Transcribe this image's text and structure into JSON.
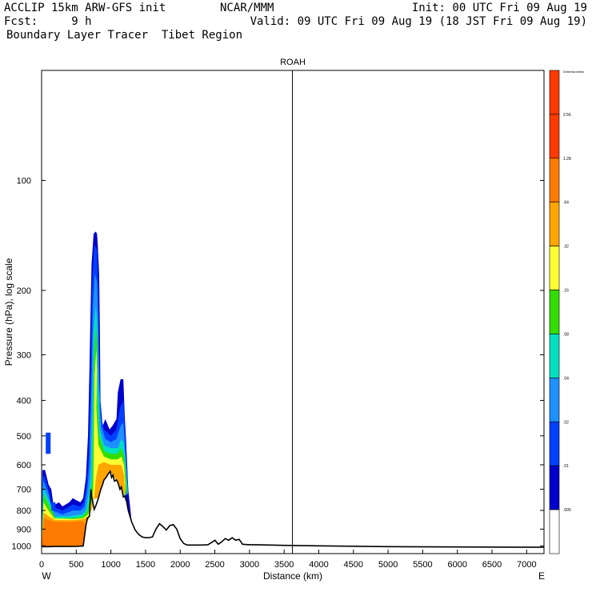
{
  "header": {
    "line1_left": "ACCLIP 15km ARW-GFS init",
    "line1_mid": "NCAR/MMM",
    "line1_right": "Init: 00 UTC Fri 09 Aug 19",
    "line2_left": "Fcst:     9 h",
    "line2_right": "Valid: 09 UTC Fri 09 Aug 19 (18 JST Fri 09 Aug 19)",
    "line3_left": "Boundary Layer Tracer  Tibet Region"
  },
  "chart_data": {
    "type": "cross-section",
    "title": "ROAH",
    "xlabel": "Distance (km)",
    "ylabel": "Pressure (hPa), log scale",
    "x_end_left": "W",
    "x_end_right": "E",
    "xlim": [
      0,
      7250
    ],
    "ylim": [
      1050,
      50
    ],
    "x_ticks": [
      0,
      500,
      1000,
      1500,
      2000,
      2500,
      3000,
      3500,
      4000,
      4500,
      5000,
      5500,
      6000,
      6500,
      7000
    ],
    "y_ticks": [
      100,
      200,
      300,
      400,
      500,
      600,
      700,
      800,
      900,
      1000
    ],
    "vertical_marker_km": 3620,
    "colorbar": {
      "top_label": "Dimensionless",
      "levels": [
        "2.56",
        "1.28",
        ".64",
        ".32",
        ".16",
        ".08",
        ".04",
        ".02",
        ".01",
        ".005"
      ],
      "colors": [
        "#ff3a00",
        "#ff7a00",
        "#ffa500",
        "#ffff33",
        "#33dd00",
        "#00e0c0",
        "#1e90ff",
        "#0040ff",
        "#0000cc",
        "#ffffff"
      ]
    },
    "terrain_profile": [
      [
        0,
        1005
      ],
      [
        100,
        1005
      ],
      [
        200,
        1004
      ],
      [
        300,
        1004
      ],
      [
        400,
        1004
      ],
      [
        500,
        1003
      ],
      [
        600,
        1001
      ],
      [
        640,
        880
      ],
      [
        660,
        840
      ],
      [
        690,
        830
      ],
      [
        710,
        700
      ],
      [
        730,
        745
      ],
      [
        760,
        795
      ],
      [
        790,
        770
      ],
      [
        820,
        740
      ],
      [
        850,
        705
      ],
      [
        880,
        680
      ],
      [
        900,
        660
      ],
      [
        930,
        650
      ],
      [
        960,
        636
      ],
      [
        990,
        625
      ],
      [
        1010,
        650
      ],
      [
        1030,
        640
      ],
      [
        1050,
        665
      ],
      [
        1080,
        660
      ],
      [
        1100,
        670
      ],
      [
        1130,
        700
      ],
      [
        1150,
        690
      ],
      [
        1180,
        735
      ],
      [
        1200,
        730
      ],
      [
        1230,
        760
      ],
      [
        1250,
        800
      ],
      [
        1300,
        860
      ],
      [
        1350,
        905
      ],
      [
        1400,
        930
      ],
      [
        1450,
        945
      ],
      [
        1500,
        950
      ],
      [
        1550,
        950
      ],
      [
        1600,
        945
      ],
      [
        1650,
        900
      ],
      [
        1700,
        870
      ],
      [
        1750,
        885
      ],
      [
        1800,
        905
      ],
      [
        1850,
        880
      ],
      [
        1900,
        875
      ],
      [
        1950,
        900
      ],
      [
        2000,
        955
      ],
      [
        2050,
        985
      ],
      [
        2100,
        995
      ],
      [
        2200,
        995
      ],
      [
        2300,
        995
      ],
      [
        2400,
        993
      ],
      [
        2450,
        980
      ],
      [
        2500,
        965
      ],
      [
        2550,
        990
      ],
      [
        2600,
        975
      ],
      [
        2650,
        955
      ],
      [
        2700,
        965
      ],
      [
        2750,
        950
      ],
      [
        2800,
        965
      ],
      [
        2850,
        960
      ],
      [
        2900,
        990
      ],
      [
        3000,
        993
      ],
      [
        3100,
        993
      ],
      [
        3500,
        997
      ],
      [
        4000,
        1000
      ],
      [
        5000,
        1005
      ],
      [
        6000,
        1007
      ],
      [
        7250,
        1009
      ]
    ],
    "tracer_shading": [
      {
        "level": ".01",
        "color": "#0000cc",
        "outline": [
          [
            0,
            1005
          ],
          [
            10,
            620
          ],
          [
            50,
            620
          ],
          [
            100,
            680
          ],
          [
            140,
            700
          ],
          [
            170,
            770
          ],
          [
            200,
            770
          ],
          [
            250,
            760
          ],
          [
            300,
            780
          ],
          [
            350,
            770
          ],
          [
            400,
            760
          ],
          [
            450,
            740
          ],
          [
            500,
            750
          ],
          [
            560,
            760
          ],
          [
            600,
            740
          ],
          [
            640,
            650
          ],
          [
            670,
            500
          ],
          [
            690,
            330
          ],
          [
            720,
            170
          ],
          [
            750,
            140
          ],
          [
            780,
            138
          ],
          [
            800,
            140
          ],
          [
            810,
            150
          ],
          [
            830,
            180
          ],
          [
            840,
            250
          ],
          [
            850,
            400
          ],
          [
            880,
            470
          ],
          [
            920,
            450
          ],
          [
            980,
            480
          ],
          [
            1020,
            470
          ],
          [
            1080,
            450
          ],
          [
            1100,
            380
          ],
          [
            1140,
            350
          ],
          [
            1180,
            350
          ],
          [
            1200,
            440
          ],
          [
            1220,
            520
          ],
          [
            1250,
            700
          ],
          [
            1300,
            860
          ],
          [
            1200,
            730
          ],
          [
            1100,
            670
          ],
          [
            990,
            625
          ],
          [
            900,
            660
          ],
          [
            820,
            740
          ],
          [
            730,
            745
          ],
          [
            690,
            830
          ],
          [
            640,
            880
          ],
          [
            600,
            1001
          ]
        ]
      },
      {
        "level": ".02",
        "color": "#0040ff",
        "outline": [
          [
            0,
            1005
          ],
          [
            15,
            640
          ],
          [
            50,
            650
          ],
          [
            100,
            700
          ],
          [
            150,
            780
          ],
          [
            300,
            800
          ],
          [
            450,
            770
          ],
          [
            560,
            780
          ],
          [
            610,
            760
          ],
          [
            650,
            680
          ],
          [
            680,
            560
          ],
          [
            705,
            360
          ],
          [
            730,
            190
          ],
          [
            760,
            150
          ],
          [
            800,
            155
          ],
          [
            820,
            200
          ],
          [
            830,
            300
          ],
          [
            850,
            440
          ],
          [
            900,
            480
          ],
          [
            1000,
            500
          ],
          [
            1080,
            480
          ],
          [
            1130,
            420
          ],
          [
            1180,
            400
          ],
          [
            1200,
            470
          ],
          [
            1230,
            600
          ],
          [
            1250,
            700
          ],
          [
            1200,
            730
          ],
          [
            1100,
            670
          ],
          [
            990,
            625
          ],
          [
            900,
            660
          ],
          [
            820,
            740
          ],
          [
            730,
            745
          ],
          [
            690,
            830
          ],
          [
            640,
            880
          ],
          [
            600,
            1001
          ]
        ]
      },
      {
        "level": ".04",
        "color": "#1e90ff",
        "outline": [
          [
            0,
            1005
          ],
          [
            20,
            660
          ],
          [
            50,
            680
          ],
          [
            100,
            720
          ],
          [
            150,
            800
          ],
          [
            300,
            820
          ],
          [
            450,
            800
          ],
          [
            560,
            800
          ],
          [
            620,
            780
          ],
          [
            660,
            700
          ],
          [
            690,
            600
          ],
          [
            715,
            400
          ],
          [
            740,
            220
          ],
          [
            770,
            180
          ],
          [
            800,
            190
          ],
          [
            820,
            260
          ],
          [
            830,
            350
          ],
          [
            860,
            470
          ],
          [
            920,
            510
          ],
          [
            1000,
            520
          ],
          [
            1080,
            510
          ],
          [
            1140,
            470
          ],
          [
            1180,
            460
          ],
          [
            1200,
            520
          ],
          [
            1230,
            650
          ],
          [
            1250,
            720
          ],
          [
            1200,
            730
          ],
          [
            1100,
            670
          ],
          [
            990,
            625
          ],
          [
            900,
            660
          ],
          [
            820,
            740
          ],
          [
            730,
            745
          ],
          [
            690,
            830
          ],
          [
            640,
            880
          ],
          [
            600,
            1001
          ]
        ]
      },
      {
        "level": ".08",
        "color": "#00e0c0",
        "outline": [
          [
            0,
            1005
          ],
          [
            25,
            690
          ],
          [
            60,
            720
          ],
          [
            120,
            760
          ],
          [
            180,
            830
          ],
          [
            400,
            830
          ],
          [
            580,
            820
          ],
          [
            640,
            800
          ],
          [
            680,
            720
          ],
          [
            710,
            640
          ],
          [
            730,
            430
          ],
          [
            750,
            260
          ],
          [
            780,
            220
          ],
          [
            800,
            240
          ],
          [
            810,
            320
          ],
          [
            840,
            480
          ],
          [
            900,
            530
          ],
          [
            1000,
            540
          ],
          [
            1100,
            540
          ],
          [
            1150,
            510
          ],
          [
            1180,
            520
          ],
          [
            1210,
            580
          ],
          [
            1240,
            700
          ],
          [
            1200,
            730
          ],
          [
            1100,
            670
          ],
          [
            990,
            625
          ],
          [
            900,
            660
          ],
          [
            820,
            740
          ],
          [
            730,
            745
          ],
          [
            690,
            830
          ],
          [
            640,
            880
          ],
          [
            600,
            1001
          ]
        ]
      },
      {
        "level": ".16",
        "color": "#33dd00",
        "outline": [
          [
            0,
            1005
          ],
          [
            30,
            720
          ],
          [
            70,
            750
          ],
          [
            150,
            800
          ],
          [
            200,
            840
          ],
          [
            450,
            840
          ],
          [
            600,
            830
          ],
          [
            660,
            800
          ],
          [
            700,
            740
          ],
          [
            730,
            670
          ],
          [
            745,
            460
          ],
          [
            760,
            300
          ],
          [
            785,
            250
          ],
          [
            800,
            280
          ],
          [
            800,
            380
          ],
          [
            830,
            500
          ],
          [
            900,
            550
          ],
          [
            1000,
            560
          ],
          [
            1100,
            560
          ],
          [
            1150,
            540
          ],
          [
            1190,
            570
          ],
          [
            1220,
            650
          ],
          [
            1230,
            710
          ],
          [
            1200,
            730
          ],
          [
            1100,
            670
          ],
          [
            990,
            625
          ],
          [
            900,
            660
          ],
          [
            820,
            740
          ],
          [
            730,
            745
          ],
          [
            690,
            830
          ],
          [
            640,
            880
          ],
          [
            600,
            1001
          ]
        ]
      },
      {
        "level": ".32",
        "color": "#ffff33",
        "outline": [
          [
            0,
            1005
          ],
          [
            30,
            760
          ],
          [
            80,
            790
          ],
          [
            180,
            840
          ],
          [
            450,
            845
          ],
          [
            600,
            840
          ],
          [
            670,
            820
          ],
          [
            720,
            760
          ],
          [
            745,
            700
          ],
          [
            755,
            520
          ],
          [
            765,
            340
          ],
          [
            790,
            290
          ],
          [
            800,
            330
          ],
          [
            790,
            420
          ],
          [
            820,
            530
          ],
          [
            900,
            570
          ],
          [
            1000,
            580
          ],
          [
            1100,
            580
          ],
          [
            1150,
            570
          ],
          [
            1190,
            600
          ],
          [
            1210,
            680
          ],
          [
            1200,
            730
          ],
          [
            1100,
            670
          ],
          [
            990,
            625
          ],
          [
            900,
            660
          ],
          [
            820,
            740
          ],
          [
            730,
            745
          ],
          [
            690,
            830
          ],
          [
            640,
            880
          ],
          [
            600,
            1001
          ]
        ]
      },
      {
        "level": ".64",
        "color": "#ffa500",
        "outline": [
          [
            0,
            1005
          ],
          [
            30,
            810
          ],
          [
            100,
            830
          ],
          [
            200,
            850
          ],
          [
            450,
            850
          ],
          [
            600,
            845
          ],
          [
            680,
            830
          ],
          [
            730,
            790
          ],
          [
            760,
            730
          ],
          [
            780,
            660
          ],
          [
            820,
            600
          ],
          [
            900,
            590
          ],
          [
            1000,
            600
          ],
          [
            1100,
            600
          ],
          [
            1150,
            600
          ],
          [
            1190,
            640
          ],
          [
            1200,
            700
          ],
          [
            1200,
            730
          ],
          [
            1100,
            670
          ],
          [
            990,
            625
          ],
          [
            900,
            660
          ],
          [
            820,
            740
          ],
          [
            730,
            745
          ],
          [
            690,
            830
          ],
          [
            640,
            880
          ],
          [
            600,
            1001
          ]
        ]
      },
      {
        "level": "1.28",
        "color": "#ff7a00",
        "outline": [
          [
            0,
            1005
          ],
          [
            30,
            840
          ],
          [
            100,
            850
          ],
          [
            200,
            860
          ],
          [
            450,
            860
          ],
          [
            600,
            855
          ],
          [
            640,
            880
          ],
          [
            600,
            1001
          ]
        ]
      }
    ]
  }
}
